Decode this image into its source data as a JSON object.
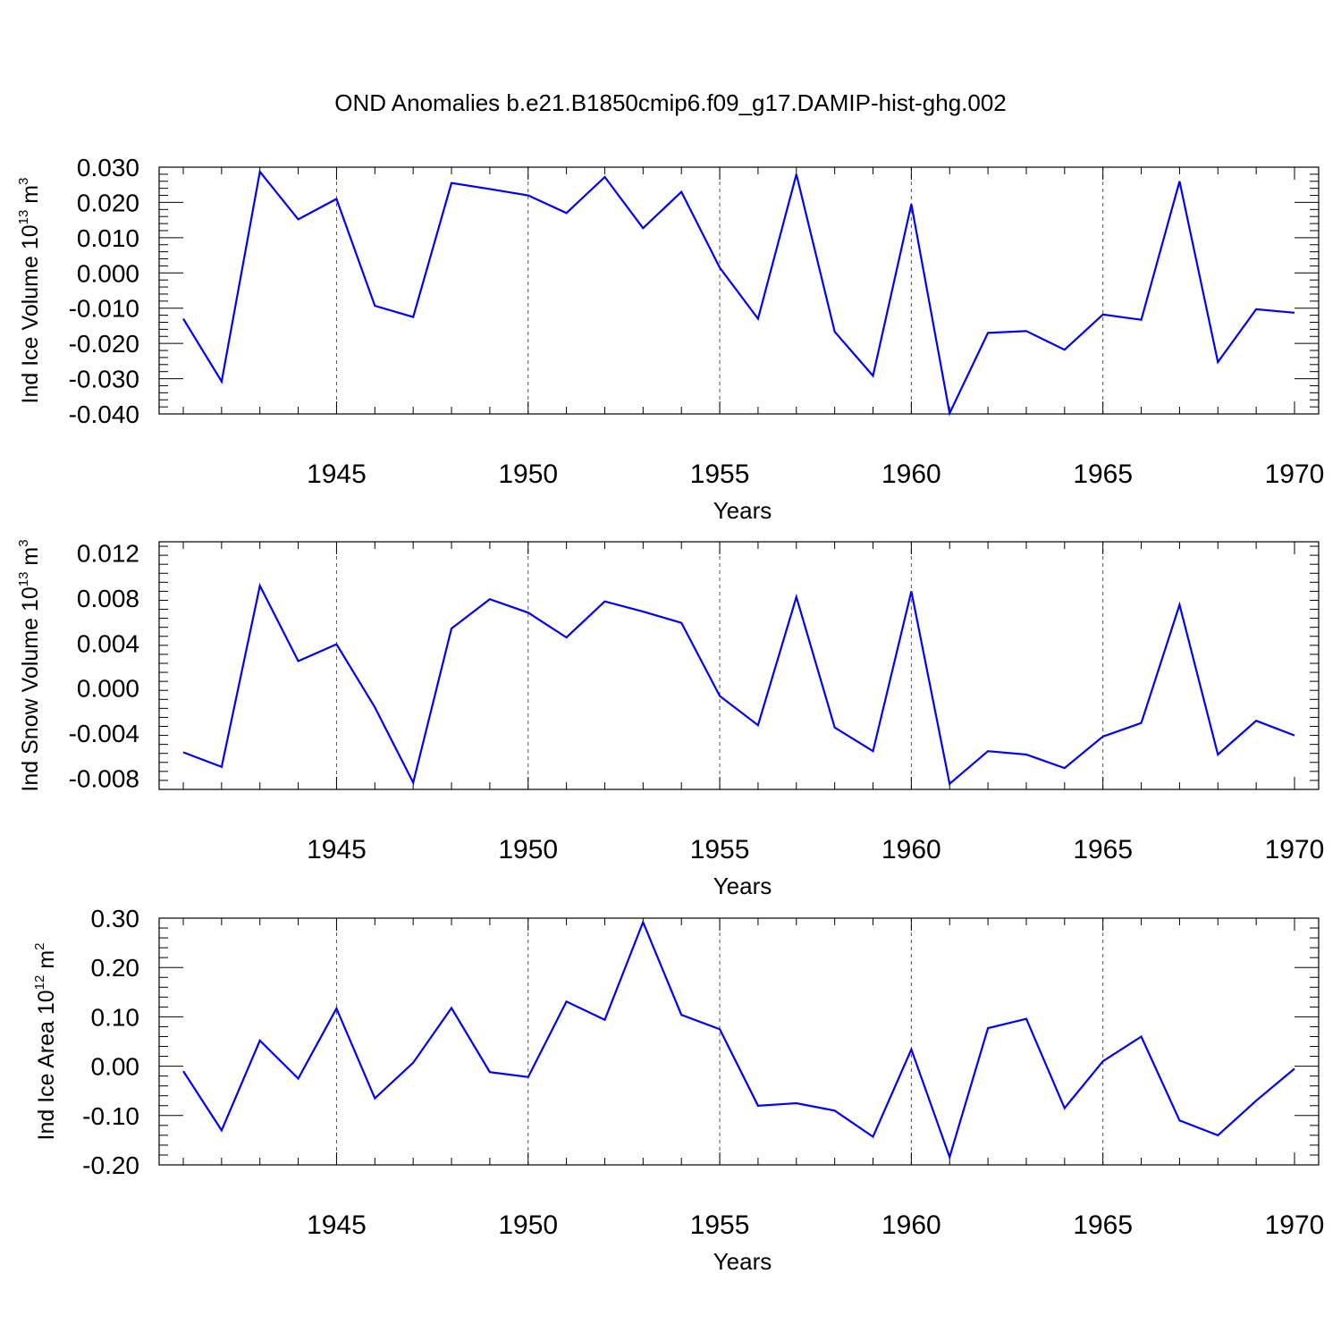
{
  "colors": {
    "series": "#0000ff",
    "axis": "#000000",
    "grid": "#555555"
  },
  "chart_data": [
    {
      "type": "line",
      "title": "OND Anomalies b.e21.B1850cmip6.f09_g17.DAMIP-hist-ghg.002",
      "ylabel": "Ind Ice Volume 10",
      "ylabel_exp": "13",
      "ylabel_unit": " m",
      "ylabel_unit_exp": "3",
      "xlabel": "Years",
      "xlim": [
        1941,
        1970
      ],
      "ylim": [
        -0.04,
        0.03
      ],
      "yticks": [
        -0.04,
        -0.03,
        -0.02,
        -0.01,
        0.0,
        0.01,
        0.02,
        0.03
      ],
      "ytick_labels": [
        "-0.040",
        "-0.030",
        "-0.020",
        "-0.010",
        "0.000",
        "0.010",
        "0.020",
        "0.030"
      ],
      "xticks": [
        1945,
        1950,
        1955,
        1960,
        1965,
        1970
      ],
      "xtick_labels": [
        "1945",
        "1950",
        "1955",
        "1960",
        "1965",
        "1970"
      ],
      "x": [
        1941,
        1942,
        1943,
        1944,
        1945,
        1946,
        1947,
        1948,
        1949,
        1950,
        1951,
        1952,
        1953,
        1954,
        1955,
        1956,
        1957,
        1958,
        1959,
        1960,
        1961,
        1962,
        1963,
        1964,
        1965,
        1966,
        1967,
        1968,
        1969,
        1970
      ],
      "values": [
        -0.013,
        -0.0308,
        0.0287,
        0.0152,
        0.021,
        -0.0093,
        -0.0125,
        0.0255,
        0.0238,
        0.022,
        0.017,
        0.0272,
        0.0127,
        0.023,
        0.0015,
        -0.013,
        0.028,
        -0.0167,
        -0.0292,
        0.0195,
        -0.0398,
        -0.017,
        -0.0165,
        -0.0218,
        -0.0118,
        -0.0133,
        0.026,
        -0.0253,
        -0.0103,
        -0.0113
      ]
    },
    {
      "type": "line",
      "ylabel": "Ind Snow Volume 10",
      "ylabel_exp": "13",
      "ylabel_unit": " m",
      "ylabel_unit_exp": "3",
      "xlabel": "Years",
      "xlim": [
        1941,
        1970
      ],
      "ylim": [
        -0.009,
        0.013
      ],
      "yticks": [
        -0.008,
        -0.004,
        0.0,
        0.004,
        0.008,
        0.012
      ],
      "ytick_labels": [
        "-0.008",
        "-0.004",
        "0.000",
        "0.004",
        "0.008",
        "0.012"
      ],
      "xticks": [
        1945,
        1950,
        1955,
        1960,
        1965,
        1970
      ],
      "xtick_labels": [
        "1945",
        "1950",
        "1955",
        "1960",
        "1965",
        "1970"
      ],
      "x": [
        1941,
        1942,
        1943,
        1944,
        1945,
        1946,
        1947,
        1948,
        1949,
        1950,
        1951,
        1952,
        1953,
        1954,
        1955,
        1956,
        1957,
        1958,
        1959,
        1960,
        1961,
        1962,
        1963,
        1964,
        1965,
        1966,
        1967,
        1968,
        1969,
        1970
      ],
      "values": [
        -0.0057,
        -0.007,
        0.0091,
        0.0024,
        0.0039,
        -0.0017,
        -0.0084,
        0.0053,
        0.0079,
        0.0067,
        0.0045,
        0.0077,
        0.0068,
        0.0058,
        -0.0007,
        -0.0033,
        0.0081,
        -0.0035,
        -0.0056,
        0.0086,
        -0.0085,
        -0.0056,
        -0.0059,
        -0.0071,
        -0.0043,
        -0.0031,
        0.0074,
        -0.0059,
        -0.0029,
        -0.0042
      ]
    },
    {
      "type": "line",
      "ylabel": "Ind Ice Area 10",
      "ylabel_exp": "12",
      "ylabel_unit": " m",
      "ylabel_unit_exp": "2",
      "xlabel": "Years",
      "xlim": [
        1941,
        1970
      ],
      "ylim": [
        -0.2,
        0.3
      ],
      "yticks": [
        -0.2,
        -0.1,
        0.0,
        0.1,
        0.2,
        0.3
      ],
      "ytick_labels": [
        "-0.20",
        "-0.10",
        "0.00",
        "0.10",
        "0.20",
        "0.30"
      ],
      "xticks": [
        1945,
        1950,
        1955,
        1960,
        1965,
        1970
      ],
      "xtick_labels": [
        "1945",
        "1950",
        "1955",
        "1960",
        "1965",
        "1970"
      ],
      "x": [
        1941,
        1942,
        1943,
        1944,
        1945,
        1946,
        1947,
        1948,
        1949,
        1950,
        1951,
        1952,
        1953,
        1954,
        1955,
        1956,
        1957,
        1958,
        1959,
        1960,
        1961,
        1962,
        1963,
        1964,
        1965,
        1966,
        1967,
        1968,
        1969,
        1970
      ],
      "values": [
        -0.01,
        -0.13,
        0.052,
        -0.025,
        0.117,
        -0.065,
        0.007,
        0.118,
        -0.012,
        -0.022,
        0.131,
        0.094,
        0.292,
        0.104,
        0.075,
        -0.08,
        -0.075,
        -0.09,
        -0.143,
        0.034,
        -0.184,
        0.077,
        0.096,
        -0.085,
        0.01,
        0.06,
        -0.11,
        -0.14,
        -0.07,
        -0.005
      ]
    }
  ]
}
